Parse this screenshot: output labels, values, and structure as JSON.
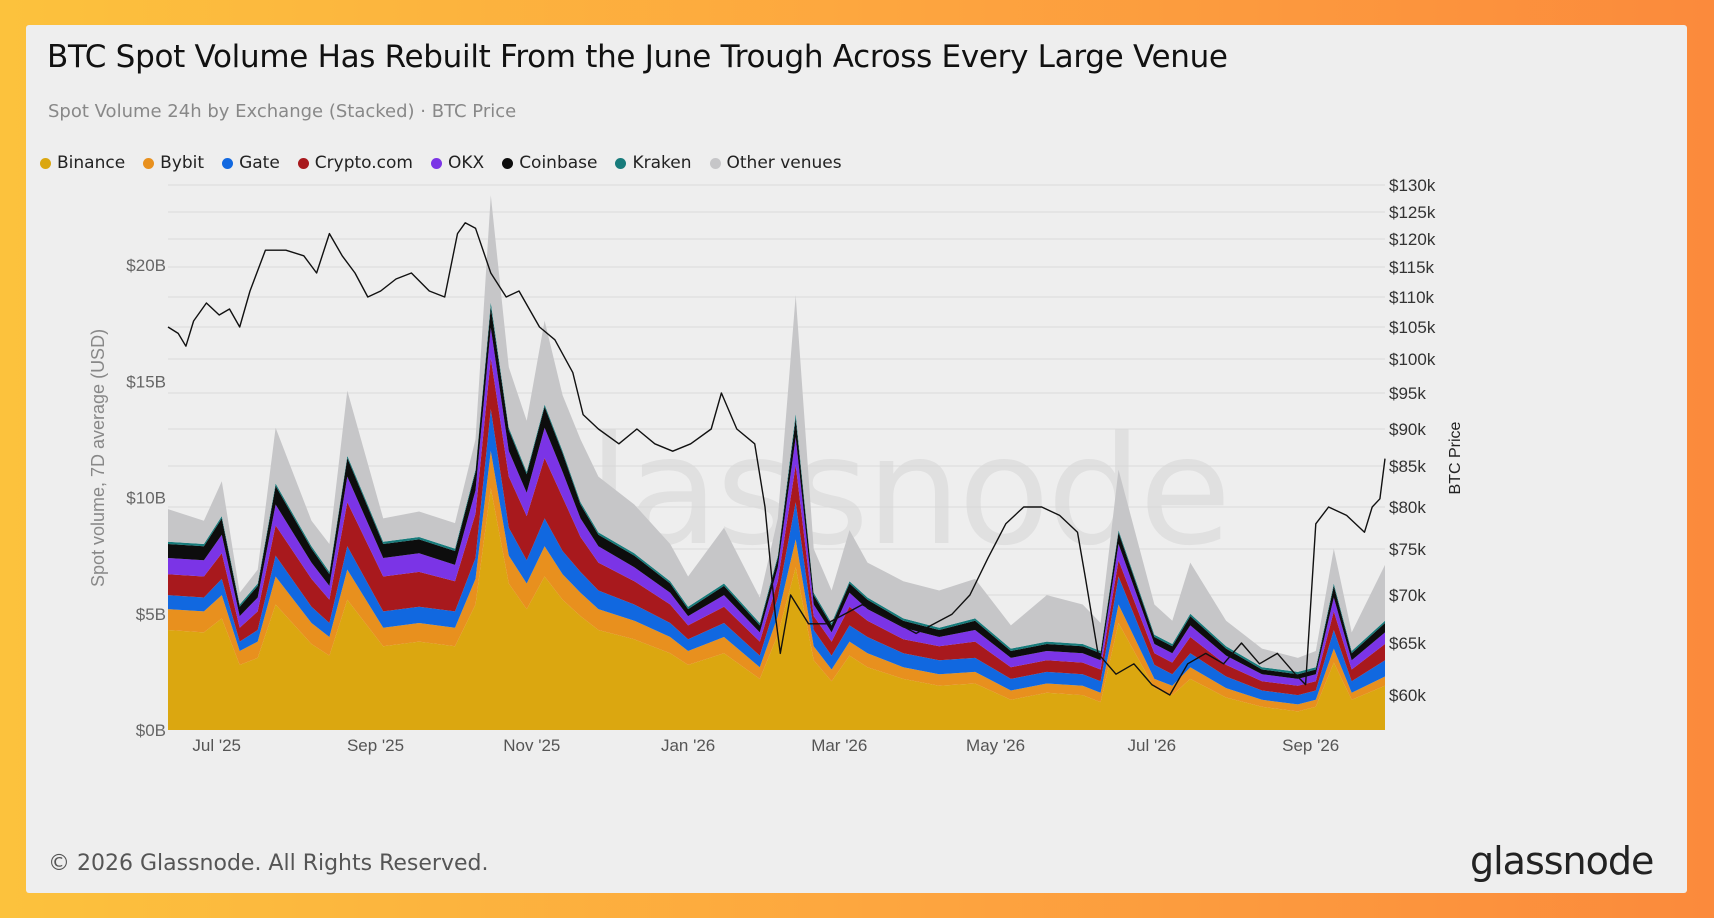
{
  "title": "BTC Spot Volume Has Rebuilt From the June Trough Across Every Large Venue",
  "subtitle": "Spot Volume 24h by Exchange (Stacked) · BTC Price",
  "footer": "© 2026 Glassnode. All Rights Reserved.",
  "logo": "glassnode",
  "watermark": "glassnode",
  "chart_data": {
    "type": "area",
    "stacked": true,
    "ylabel": "Spot volume, 7D average (USD)",
    "y2label": "BTC Price",
    "ylim": [
      0,
      22
    ],
    "y2lim": [
      55,
      130
    ],
    "y_ticks": [
      "$0B",
      "$5B",
      "$10B",
      "$15B",
      "$20B"
    ],
    "y_tick_values": [
      0,
      5,
      10,
      15,
      20
    ],
    "y2_ticks": [
      "$60k",
      "$65k",
      "$70k",
      "$75k",
      "$80k",
      "$85k",
      "$90k",
      "$95k",
      "$100k",
      "$105k",
      "$110k",
      "$115k",
      "$120k",
      "$125k",
      "$130k"
    ],
    "y2_tick_values": [
      60,
      65,
      70,
      75,
      80,
      85,
      90,
      95,
      100,
      105,
      110,
      115,
      120,
      125,
      130
    ],
    "x_ticks": [
      "Jul '25",
      "Sep '25",
      "Nov '25",
      "Jan '26",
      "Mar '26",
      "May '26",
      "Jul '26",
      "Sep '26"
    ],
    "x_tick_values": [
      "2025-07-01",
      "2025-09-01",
      "2025-11-01",
      "2026-01-01",
      "2026-03-01",
      "2026-05-01",
      "2026-07-01",
      "2026-09-01"
    ],
    "x_range": [
      "2025-06-12",
      "2026-09-30"
    ],
    "grid": true,
    "legend_position": "top-left",
    "colors": {
      "Binance": "#dba710",
      "Bybit": "#e8901e",
      "Gate": "#1168e0",
      "Crypto.com": "#a8191d",
      "OKX": "#7b34e6",
      "Coinbase": "#0d0d0d",
      "Kraken": "#177b7b",
      "Other venues": "#c6c6c8",
      "BTC Price": "#111111"
    },
    "x": [
      "2025-06-12",
      "2025-06-26",
      "2025-07-03",
      "2025-07-10",
      "2025-07-17",
      "2025-07-24",
      "2025-08-07",
      "2025-08-14",
      "2025-08-21",
      "2025-09-04",
      "2025-09-18",
      "2025-10-02",
      "2025-10-10",
      "2025-10-16",
      "2025-10-23",
      "2025-10-30",
      "2025-11-06",
      "2025-11-13",
      "2025-11-20",
      "2025-11-27",
      "2025-12-11",
      "2025-12-25",
      "2026-01-01",
      "2026-01-15",
      "2026-01-29",
      "2026-02-05",
      "2026-02-12",
      "2026-02-19",
      "2026-02-26",
      "2026-03-05",
      "2026-03-12",
      "2026-03-26",
      "2026-04-09",
      "2026-04-23",
      "2026-05-07",
      "2026-05-21",
      "2026-06-04",
      "2026-06-11",
      "2026-06-18",
      "2026-07-02",
      "2026-07-09",
      "2026-07-16",
      "2026-07-30",
      "2026-08-13",
      "2026-08-27",
      "2026-09-03",
      "2026-09-10",
      "2026-09-17",
      "2026-09-30"
    ],
    "series": [
      {
        "name": "Binance",
        "values": [
          4.3,
          4.2,
          4.8,
          2.8,
          3.1,
          5.4,
          3.7,
          3.2,
          5.6,
          3.6,
          3.8,
          3.6,
          5.4,
          10.4,
          6.3,
          5.2,
          6.6,
          5.6,
          4.9,
          4.3,
          3.9,
          3.3,
          2.8,
          3.3,
          2.2,
          4.1,
          7.0,
          3.0,
          2.1,
          3.2,
          2.7,
          2.2,
          1.9,
          2.0,
          1.3,
          1.6,
          1.5,
          1.2,
          4.6,
          1.8,
          1.5,
          2.2,
          1.4,
          1.0,
          0.8,
          1.0,
          2.9,
          1.3,
          1.9
        ]
      },
      {
        "name": "Bybit",
        "values": [
          0.9,
          0.9,
          1.0,
          0.6,
          0.7,
          1.2,
          0.9,
          0.8,
          1.3,
          0.8,
          0.8,
          0.8,
          1.1,
          1.6,
          1.2,
          1.1,
          1.3,
          1.1,
          1.0,
          0.9,
          0.8,
          0.7,
          0.6,
          0.7,
          0.5,
          0.8,
          1.2,
          0.6,
          0.5,
          0.6,
          0.6,
          0.5,
          0.5,
          0.5,
          0.4,
          0.4,
          0.4,
          0.4,
          0.8,
          0.4,
          0.4,
          0.5,
          0.4,
          0.3,
          0.3,
          0.3,
          0.6,
          0.3,
          0.4
        ]
      },
      {
        "name": "Gate",
        "values": [
          0.6,
          0.6,
          0.7,
          0.4,
          0.5,
          0.9,
          0.7,
          0.6,
          1.0,
          0.7,
          0.7,
          0.7,
          0.9,
          1.8,
          1.2,
          1.0,
          1.2,
          1.0,
          0.9,
          0.8,
          0.7,
          0.6,
          0.5,
          0.6,
          0.5,
          0.8,
          1.6,
          0.7,
          0.6,
          0.7,
          0.7,
          0.6,
          0.6,
          0.6,
          0.5,
          0.5,
          0.5,
          0.5,
          1.2,
          0.6,
          0.5,
          0.6,
          0.5,
          0.4,
          0.4,
          0.4,
          0.8,
          0.5,
          0.7
        ]
      },
      {
        "name": "Crypto.com",
        "values": [
          0.9,
          0.9,
          1.1,
          0.6,
          0.8,
          1.3,
          1.2,
          1.0,
          1.9,
          1.5,
          1.5,
          1.3,
          1.9,
          2.2,
          2.2,
          1.9,
          2.6,
          2.3,
          1.5,
          1.2,
          1.0,
          0.8,
          0.6,
          0.7,
          0.6,
          0.7,
          1.6,
          0.6,
          0.6,
          0.8,
          0.7,
          0.6,
          0.6,
          0.7,
          0.5,
          0.5,
          0.5,
          0.5,
          0.7,
          0.5,
          0.5,
          0.7,
          0.5,
          0.4,
          0.4,
          0.4,
          0.8,
          0.5,
          0.7
        ]
      },
      {
        "name": "OKX",
        "values": [
          0.7,
          0.7,
          0.8,
          0.5,
          0.6,
          0.9,
          0.7,
          0.6,
          1.1,
          0.8,
          0.8,
          0.7,
          1.0,
          1.3,
          1.1,
          1.0,
          1.3,
          1.1,
          0.8,
          0.7,
          0.6,
          0.5,
          0.4,
          0.5,
          0.4,
          0.6,
          1.2,
          0.5,
          0.4,
          0.6,
          0.5,
          0.5,
          0.4,
          0.5,
          0.4,
          0.4,
          0.4,
          0.4,
          0.7,
          0.4,
          0.4,
          0.5,
          0.4,
          0.3,
          0.3,
          0.3,
          0.6,
          0.4,
          0.5
        ]
      },
      {
        "name": "Coinbase",
        "values": [
          0.6,
          0.6,
          0.7,
          0.4,
          0.5,
          0.8,
          0.6,
          0.5,
          0.8,
          0.6,
          0.6,
          0.6,
          0.8,
          0.9,
          0.9,
          0.8,
          0.9,
          0.8,
          0.6,
          0.5,
          0.5,
          0.4,
          0.3,
          0.4,
          0.3,
          0.4,
          0.8,
          0.4,
          0.3,
          0.4,
          0.4,
          0.3,
          0.3,
          0.4,
          0.3,
          0.3,
          0.3,
          0.3,
          0.5,
          0.3,
          0.3,
          0.4,
          0.3,
          0.2,
          0.2,
          0.2,
          0.5,
          0.3,
          0.4
        ]
      },
      {
        "name": "Kraken",
        "values": [
          0.1,
          0.1,
          0.1,
          0.1,
          0.1,
          0.1,
          0.1,
          0.1,
          0.1,
          0.1,
          0.1,
          0.1,
          0.1,
          0.2,
          0.1,
          0.1,
          0.1,
          0.1,
          0.1,
          0.1,
          0.1,
          0.1,
          0.1,
          0.1,
          0.1,
          0.1,
          0.2,
          0.1,
          0.1,
          0.1,
          0.1,
          0.1,
          0.1,
          0.1,
          0.1,
          0.1,
          0.1,
          0.1,
          0.1,
          0.1,
          0.1,
          0.1,
          0.1,
          0.1,
          0.1,
          0.1,
          0.1,
          0.1,
          0.1
        ]
      },
      {
        "name": "Other venues",
        "values": [
          1.4,
          1.0,
          1.5,
          0.5,
          0.6,
          2.4,
          1.1,
          1.2,
          2.8,
          1.0,
          1.1,
          1.1,
          1.3,
          4.6,
          2.6,
          2.2,
          3.6,
          2.4,
          2.7,
          2.4,
          2.1,
          1.6,
          1.3,
          2.4,
          1.1,
          1.6,
          5.1,
          1.9,
          1.4,
          2.2,
          1.5,
          1.6,
          1.6,
          1.7,
          1.0,
          2.0,
          1.7,
          1.2,
          2.6,
          1.3,
          1.0,
          2.2,
          1.1,
          0.8,
          0.6,
          0.7,
          1.5,
          0.8,
          2.4
        ]
      }
    ],
    "btc_price": {
      "name": "BTC Price",
      "x": [
        "2025-06-12",
        "2025-06-16",
        "2025-06-19",
        "2025-06-22",
        "2025-06-27",
        "2025-07-02",
        "2025-07-06",
        "2025-07-10",
        "2025-07-14",
        "2025-07-20",
        "2025-07-28",
        "2025-08-04",
        "2025-08-09",
        "2025-08-14",
        "2025-08-19",
        "2025-08-24",
        "2025-08-29",
        "2025-09-03",
        "2025-09-09",
        "2025-09-15",
        "2025-09-22",
        "2025-09-28",
        "2025-10-03",
        "2025-10-06",
        "2025-10-10",
        "2025-10-16",
        "2025-10-22",
        "2025-10-27",
        "2025-11-04",
        "2025-11-10",
        "2025-11-17",
        "2025-11-21",
        "2025-11-27",
        "2025-12-05",
        "2025-12-12",
        "2025-12-19",
        "2025-12-26",
        "2026-01-02",
        "2026-01-10",
        "2026-01-14",
        "2026-01-20",
        "2026-01-27",
        "2026-01-31",
        "2026-02-04",
        "2026-02-06",
        "2026-02-10",
        "2026-02-17",
        "2026-02-24",
        "2026-03-03",
        "2026-03-10",
        "2026-03-17",
        "2026-03-24",
        "2026-03-31",
        "2026-04-07",
        "2026-04-14",
        "2026-04-21",
        "2026-04-28",
        "2026-05-05",
        "2026-05-12",
        "2026-05-19",
        "2026-05-26",
        "2026-06-02",
        "2026-06-05",
        "2026-06-10",
        "2026-06-17",
        "2026-06-24",
        "2026-07-01",
        "2026-07-08",
        "2026-07-15",
        "2026-07-22",
        "2026-07-29",
        "2026-08-05",
        "2026-08-12",
        "2026-08-19",
        "2026-08-26",
        "2026-08-30",
        "2026-09-03",
        "2026-09-08",
        "2026-09-15",
        "2026-09-22",
        "2026-09-25",
        "2026-09-28",
        "2026-09-30"
      ],
      "values": [
        105,
        104,
        102,
        106,
        109,
        107,
        108,
        105,
        111,
        118,
        118,
        117,
        114,
        121,
        117,
        114,
        110,
        111,
        113,
        114,
        111,
        110,
        121,
        123,
        122,
        114,
        110,
        111,
        105,
        103,
        98,
        92,
        90,
        88,
        90,
        88,
        87,
        88,
        90,
        95,
        90,
        88,
        80,
        68,
        64,
        70,
        67,
        67,
        68,
        69,
        68,
        67,
        66,
        67,
        68,
        70,
        74,
        78,
        80,
        80,
        79,
        77,
        72,
        64,
        62,
        63,
        61,
        60,
        63,
        64,
        63,
        65,
        63,
        64,
        62,
        61,
        78,
        80,
        79,
        77,
        80,
        81,
        86
      ]
    }
  }
}
